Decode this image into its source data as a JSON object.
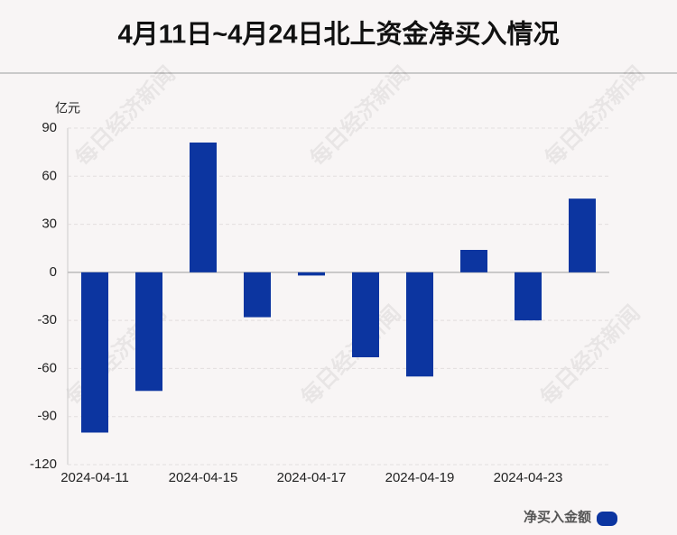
{
  "chart_data": {
    "type": "bar",
    "title": "4月11日~4月24日北上资金净买入情况",
    "y_unit": "亿元",
    "watermark": "每日经济新闻",
    "categories": [
      "2024-04-11",
      null,
      "2024-04-15",
      null,
      "2024-04-17",
      null,
      "2024-04-19",
      null,
      "2024-04-23",
      null
    ],
    "series": [
      {
        "name": "净买入金额",
        "color": "#0c35a0",
        "values": [
          -100,
          -74,
          81,
          -28,
          -2,
          -53,
          -65,
          14,
          -30,
          46
        ]
      }
    ],
    "ylim": [
      -120,
      90
    ],
    "yticks": [
      -120,
      -90,
      -60,
      -30,
      0,
      30,
      60,
      90
    ],
    "grid": true,
    "legend": "bottom-right"
  }
}
